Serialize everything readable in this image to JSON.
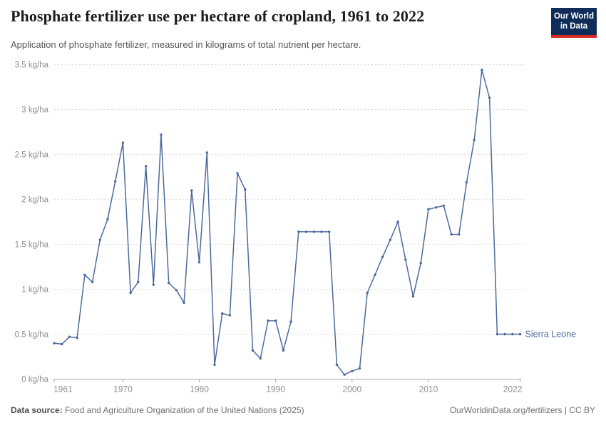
{
  "header": {
    "title": "Phosphate fertilizer use per hectare of cropland, 1961 to 2022",
    "subtitle": "Application of phosphate fertilizer, measured in kilograms of total nutrient per hectare.",
    "logo": {
      "line1": "Our World",
      "line2": "in Data",
      "bg_color": "#102d59",
      "bar_color": "#d42b21"
    }
  },
  "chart_data": {
    "type": "line",
    "title": "Phosphate fertilizer use per hectare of cropland, 1961 to 2022",
    "xlabel": "",
    "ylabel": "",
    "unit": "kg/ha",
    "xlim": [
      1961,
      2022
    ],
    "ylim": [
      0,
      3.5
    ],
    "yticks": [
      0,
      0.5,
      1,
      1.5,
      2,
      2.5,
      3,
      3.5
    ],
    "ytick_labels": [
      "0 kg/ha",
      "0.5 kg/ha",
      "1 kg/ha",
      "1.5 kg/ha",
      "2 kg/ha",
      "2.5 kg/ha",
      "3 kg/ha",
      "3.5 kg/ha"
    ],
    "xticks": [
      1961,
      1970,
      1980,
      1990,
      2000,
      2010,
      2022
    ],
    "grid": "horizontal-dashed",
    "grid_color": "#d9d9d9",
    "axis_color": "#a9a9a9",
    "tick_label_color": "#8e8e8e",
    "legend_position": "line-end-label",
    "series": [
      {
        "name": "Sierra Leone",
        "color": "#4c6a9c",
        "x": [
          1961,
          1962,
          1963,
          1964,
          1965,
          1966,
          1967,
          1968,
          1969,
          1970,
          1971,
          1972,
          1973,
          1974,
          1975,
          1976,
          1977,
          1978,
          1979,
          1980,
          1981,
          1982,
          1983,
          1984,
          1985,
          1986,
          1987,
          1988,
          1989,
          1990,
          1991,
          1992,
          1993,
          1994,
          1995,
          1996,
          1997,
          1998,
          1999,
          2000,
          2001,
          2002,
          2003,
          2004,
          2005,
          2006,
          2007,
          2008,
          2009,
          2010,
          2011,
          2012,
          2013,
          2014,
          2015,
          2016,
          2017,
          2018,
          2019,
          2020,
          2021,
          2022
        ],
        "values": [
          0.4,
          0.39,
          0.47,
          0.46,
          1.16,
          1.08,
          1.55,
          1.78,
          2.2,
          2.63,
          0.96,
          1.08,
          2.37,
          1.05,
          2.72,
          1.07,
          0.99,
          0.85,
          2.1,
          1.3,
          2.52,
          0.16,
          0.73,
          0.71,
          2.29,
          2.11,
          0.32,
          0.23,
          0.65,
          0.65,
          0.32,
          0.64,
          1.64,
          1.64,
          1.64,
          1.64,
          1.64,
          0.16,
          0.05,
          0.09,
          0.12,
          0.96,
          1.16,
          1.36,
          1.55,
          1.75,
          1.33,
          0.92,
          1.29,
          1.89,
          1.91,
          1.93,
          1.61,
          1.61,
          2.19,
          2.66,
          3.44,
          3.13,
          0.5,
          0.5,
          0.5,
          0.5
        ]
      }
    ]
  },
  "footer": {
    "source_label": "Data source:",
    "source_text": " Food and Agriculture Organization of the United Nations (2025)",
    "credit": "OurWorldinData.org/fertilizers | CC BY"
  }
}
